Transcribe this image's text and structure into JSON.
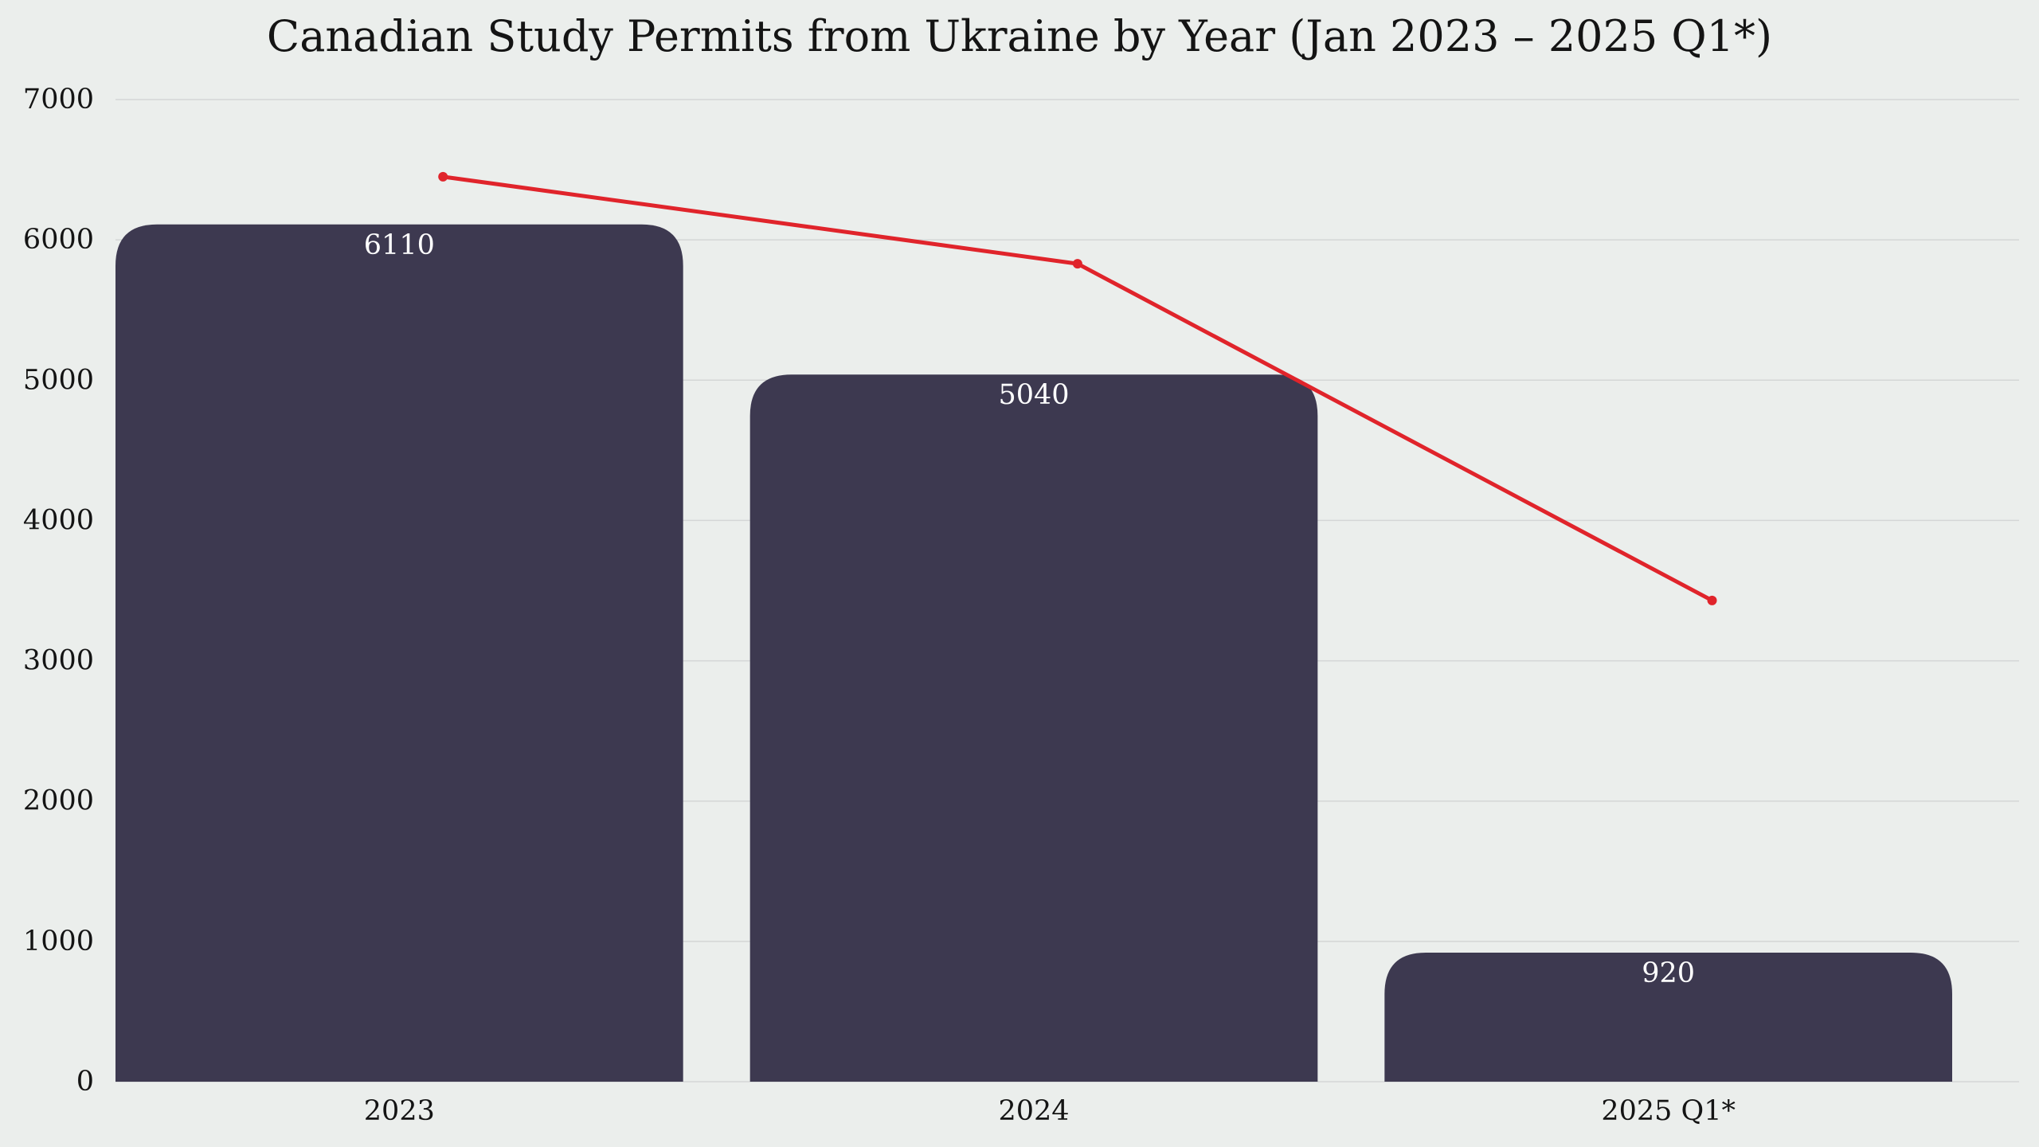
{
  "chart_data": {
    "type": "bar",
    "title": "Canadian Study Permits from Ukraine by Year (Jan 2023 – 2025 Q1*)",
    "xlabel": "",
    "ylabel": "",
    "categories": [
      "2023",
      "2024",
      "2025 Q1*"
    ],
    "values": [
      6110,
      5040,
      920
    ],
    "data_labels": [
      "6110",
      "5040",
      "920"
    ],
    "overlay_line": {
      "type": "line",
      "values": [
        6450,
        5830,
        3430
      ]
    },
    "ylim": [
      0,
      7000
    ],
    "yticks": [
      0,
      1000,
      2000,
      3000,
      4000,
      5000,
      6000,
      7000
    ],
    "ytick_labels": [
      "0",
      "1000",
      "2000",
      "3000",
      "4000",
      "5000",
      "6000",
      "7000"
    ],
    "grid": true,
    "legend": "none",
    "colors": {
      "bar": "#3d3950",
      "line": "#e0242b",
      "grid": "#d4d6d6",
      "background": "#ebeeec",
      "data_label": "#ffffff"
    }
  }
}
